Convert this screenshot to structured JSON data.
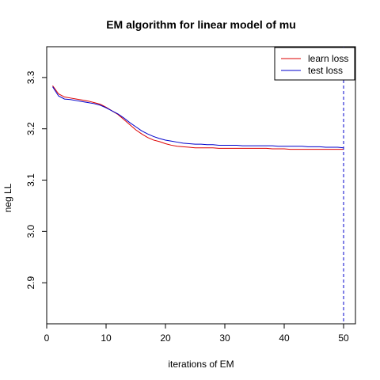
{
  "chart_data": {
    "type": "line",
    "title": "EM algorithm for linear model of mu",
    "xlabel": "iterations of EM",
    "ylabel": "neg LL",
    "xlim": [
      0,
      52
    ],
    "ylim": [
      2.82,
      3.36
    ],
    "xticks": [
      0,
      10,
      20,
      30,
      40,
      50
    ],
    "yticks": [
      2.9,
      3.0,
      3.1,
      3.2,
      3.3
    ],
    "xtick_labels": [
      "0",
      "10",
      "20",
      "30",
      "40",
      "50"
    ],
    "ytick_labels": [
      "2.9",
      "3.0",
      "3.1",
      "3.2",
      "3.3"
    ],
    "x": [
      1,
      2,
      3,
      4,
      5,
      6,
      7,
      8,
      9,
      10,
      11,
      12,
      13,
      14,
      15,
      16,
      17,
      18,
      19,
      20,
      21,
      22,
      23,
      24,
      25,
      26,
      27,
      28,
      29,
      30,
      31,
      32,
      33,
      34,
      35,
      36,
      37,
      38,
      39,
      40,
      41,
      42,
      43,
      44,
      45,
      46,
      47,
      48,
      49,
      50
    ],
    "series": [
      {
        "name": "learn loss",
        "color": "#dd0000",
        "values": [
          3.284,
          3.268,
          3.262,
          3.26,
          3.258,
          3.256,
          3.254,
          3.251,
          3.248,
          3.242,
          3.235,
          3.228,
          3.218,
          3.208,
          3.198,
          3.19,
          3.183,
          3.178,
          3.175,
          3.171,
          3.168,
          3.166,
          3.165,
          3.164,
          3.163,
          3.163,
          3.163,
          3.163,
          3.162,
          3.162,
          3.162,
          3.162,
          3.162,
          3.162,
          3.162,
          3.162,
          3.162,
          3.161,
          3.161,
          3.161,
          3.16,
          3.16,
          3.16,
          3.16,
          3.16,
          3.16,
          3.16,
          3.16,
          3.16,
          3.16
        ]
      },
      {
        "name": "test loss",
        "color": "#0000cc",
        "values": [
          3.282,
          3.264,
          3.258,
          3.257,
          3.255,
          3.253,
          3.251,
          3.249,
          3.246,
          3.241,
          3.235,
          3.229,
          3.221,
          3.212,
          3.204,
          3.196,
          3.19,
          3.185,
          3.181,
          3.178,
          3.176,
          3.174,
          3.172,
          3.171,
          3.17,
          3.17,
          3.169,
          3.169,
          3.168,
          3.168,
          3.168,
          3.168,
          3.167,
          3.167,
          3.167,
          3.167,
          3.167,
          3.167,
          3.166,
          3.166,
          3.166,
          3.166,
          3.166,
          3.165,
          3.165,
          3.165,
          3.164,
          3.164,
          3.164,
          3.163
        ]
      }
    ],
    "vline": {
      "x": 50,
      "style": "dashed",
      "color": "#0000cc"
    },
    "legend": {
      "position": "top-right"
    },
    "grid": false
  }
}
